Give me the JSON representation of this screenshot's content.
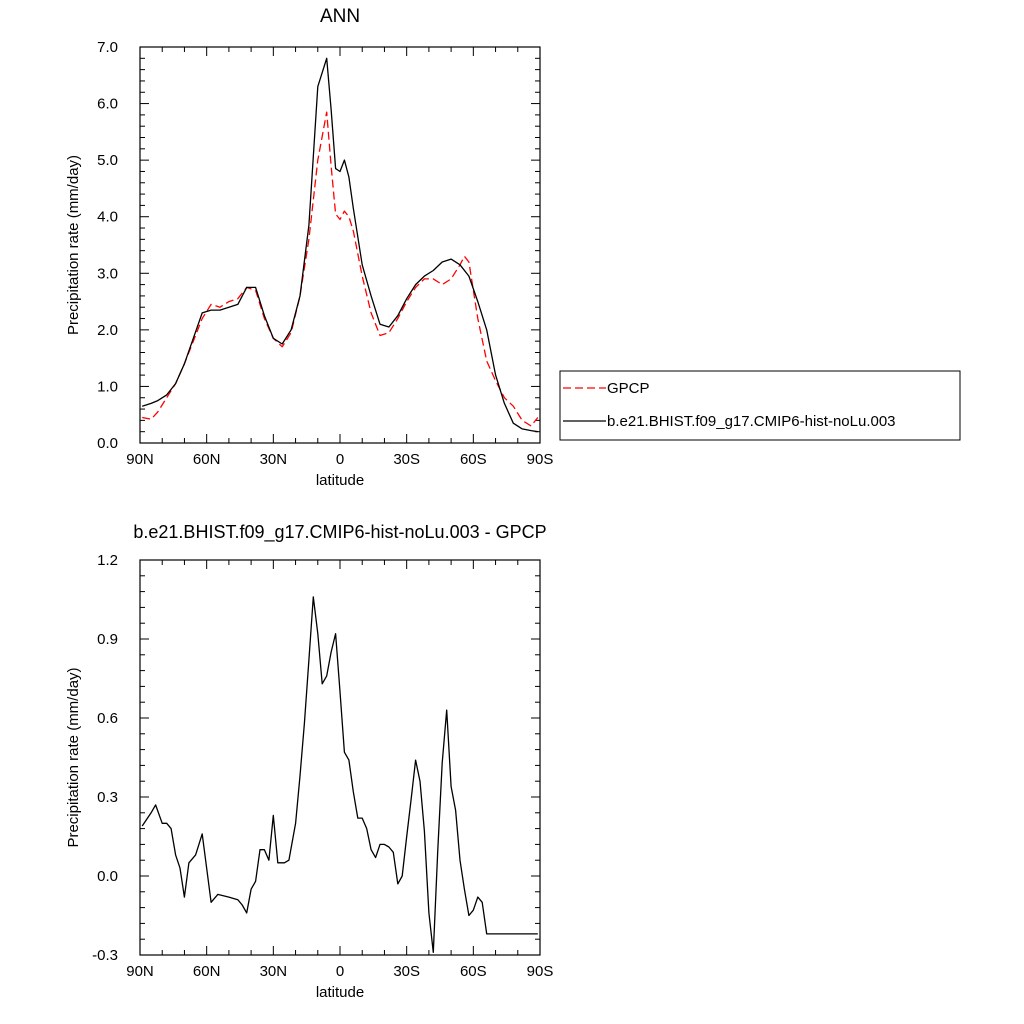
{
  "chart_data": [
    {
      "type": "line",
      "title": "ANN",
      "xlabel": "latitude",
      "ylabel": "Precipitation rate (mm/day)",
      "xlim": [
        90,
        -90
      ],
      "ylim": [
        0,
        7
      ],
      "x_ticks": [
        90,
        60,
        30,
        0,
        -30,
        -60,
        -90
      ],
      "x_tick_labels": [
        "90N",
        "60N",
        "30N",
        "0",
        "30S",
        "60S",
        "90S"
      ],
      "y_ticks": [
        0,
        1,
        2,
        3,
        4,
        5,
        6,
        7
      ],
      "y_tick_labels": [
        "0.0",
        "1.0",
        "2.0",
        "3.0",
        "4.0",
        "5.0",
        "6.0",
        "7.0"
      ],
      "legend_position": "right",
      "series": [
        {
          "name": "GPCP",
          "color": "#ff0000",
          "dash": "dashed",
          "x": [
            89,
            85,
            82,
            78,
            74,
            70,
            66,
            62,
            58,
            54,
            50,
            46,
            42,
            38,
            34,
            30,
            26,
            22,
            18,
            14,
            10,
            6,
            4,
            2,
            0,
            -2,
            -4,
            -6,
            -10,
            -14,
            -18,
            -22,
            -26,
            -30,
            -34,
            -38,
            -42,
            -46,
            -50,
            -54,
            -56,
            -58,
            -62,
            -66,
            -70,
            -74,
            -78,
            -82,
            -86,
            -89
          ],
          "y": [
            0.45,
            0.42,
            0.55,
            0.8,
            1.05,
            1.4,
            1.8,
            2.2,
            2.45,
            2.4,
            2.5,
            2.55,
            2.75,
            2.7,
            2.2,
            1.85,
            1.7,
            1.95,
            2.6,
            3.6,
            5.0,
            5.85,
            4.9,
            4.05,
            3.95,
            4.1,
            4.0,
            3.75,
            2.95,
            2.3,
            1.9,
            1.95,
            2.2,
            2.5,
            2.75,
            2.9,
            2.9,
            2.8,
            2.9,
            3.15,
            3.3,
            3.2,
            2.2,
            1.45,
            1.1,
            0.8,
            0.65,
            0.4,
            0.3,
            0.45
          ]
        },
        {
          "name": "b.e21.BHIST.f09_g17.CMIP6-hist-noLu.003",
          "color": "#000000",
          "dash": "solid",
          "x": [
            89,
            85,
            82,
            78,
            74,
            70,
            66,
            62,
            58,
            54,
            50,
            46,
            42,
            38,
            34,
            30,
            26,
            22,
            18,
            14,
            10,
            6,
            4,
            2,
            0,
            -2,
            -4,
            -6,
            -10,
            -14,
            -18,
            -22,
            -26,
            -30,
            -34,
            -38,
            -42,
            -46,
            -50,
            -54,
            -58,
            -62,
            -66,
            -70,
            -74,
            -78,
            -82,
            -86,
            -89
          ],
          "y": [
            0.65,
            0.7,
            0.75,
            0.85,
            1.05,
            1.4,
            1.85,
            2.3,
            2.35,
            2.35,
            2.4,
            2.45,
            2.75,
            2.75,
            2.25,
            1.85,
            1.75,
            2.0,
            2.6,
            3.85,
            6.3,
            6.8,
            5.9,
            4.85,
            4.8,
            5.0,
            4.7,
            4.15,
            3.15,
            2.6,
            2.1,
            2.05,
            2.25,
            2.55,
            2.8,
            2.95,
            3.05,
            3.2,
            3.25,
            3.15,
            2.95,
            2.5,
            2.0,
            1.2,
            0.7,
            0.35,
            0.25,
            0.22,
            0.2
          ]
        }
      ]
    },
    {
      "type": "line",
      "title": "b.e21.BHIST.f09_g17.CMIP6-hist-noLu.003 - GPCP",
      "xlabel": "latitude",
      "ylabel": "Precipitation rate (mm/day)",
      "xlim": [
        90,
        -90
      ],
      "ylim": [
        -0.3,
        1.2
      ],
      "x_ticks": [
        90,
        60,
        30,
        0,
        -30,
        -60,
        -90
      ],
      "x_tick_labels": [
        "90N",
        "60N",
        "30N",
        "0",
        "30S",
        "60S",
        "90S"
      ],
      "y_ticks": [
        -0.3,
        0,
        0.3,
        0.6,
        0.9,
        1.2
      ],
      "y_tick_labels": [
        "-0.3",
        "0.0",
        "0.3",
        "0.6",
        "0.9",
        "1.2"
      ],
      "series": [
        {
          "name": "",
          "color": "#000000",
          "dash": "solid",
          "x": [
            89,
            85,
            83,
            80,
            78,
            76,
            74,
            72,
            70,
            68,
            65,
            62,
            58,
            55,
            50,
            46,
            44,
            42,
            40,
            38,
            36,
            34,
            32,
            30,
            28,
            25,
            23,
            20,
            18,
            16,
            14,
            12,
            10,
            8,
            6,
            4,
            2,
            0,
            -2,
            -4,
            -6,
            -8,
            -10,
            -12,
            -14,
            -16,
            -18,
            -20,
            -22,
            -24,
            -26,
            -28,
            -30,
            -32,
            -34,
            -36,
            -38,
            -40,
            -42,
            -44,
            -46,
            -48,
            -50,
            -52,
            -54,
            -56,
            -58,
            -60,
            -62,
            -64,
            -66,
            -68,
            -70,
            -72,
            -74,
            -76,
            -78,
            -80,
            -82,
            -84,
            -86,
            -88,
            -89
          ],
          "y": [
            0.19,
            0.24,
            0.27,
            0.2,
            0.2,
            0.18,
            0.08,
            0.03,
            -0.08,
            0.05,
            0.08,
            0.16,
            -0.1,
            -0.07,
            -0.08,
            -0.09,
            -0.11,
            -0.14,
            -0.05,
            -0.02,
            0.1,
            0.1,
            0.06,
            0.23,
            0.05,
            0.05,
            0.06,
            0.2,
            0.38,
            0.58,
            0.82,
            1.06,
            0.92,
            0.73,
            0.76,
            0.85,
            0.92,
            0.7,
            0.47,
            0.44,
            0.32,
            0.22,
            0.22,
            0.18,
            0.1,
            0.07,
            0.12,
            0.12,
            0.11,
            0.09,
            -0.03,
            0.0,
            0.15,
            0.29,
            0.44,
            0.36,
            0.17,
            -0.14,
            -0.29,
            0.1,
            0.43,
            0.63,
            0.34,
            0.25,
            0.06,
            -0.05,
            -0.15,
            -0.13,
            -0.08,
            -0.1,
            -0.22,
            -0.22,
            -0.22,
            -0.22,
            -0.22,
            -0.22,
            -0.22,
            -0.22,
            -0.22,
            -0.22,
            -0.22,
            -0.22,
            -0.22
          ]
        }
      ]
    }
  ]
}
